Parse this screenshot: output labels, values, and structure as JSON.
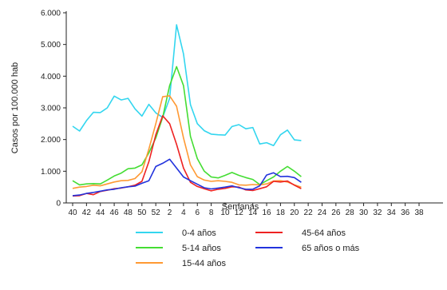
{
  "chart_data": {
    "type": "line",
    "xlabel": "Semanas",
    "ylabel": "Casos por 100.000 hab",
    "ylim": [
      0,
      6000
    ],
    "y_ticks": [
      "0",
      "1.000",
      "2.000",
      "3.000",
      "4.000",
      "5.000",
      "6.000"
    ],
    "y_tick_values": [
      0,
      1000,
      2000,
      3000,
      4000,
      5000,
      6000
    ],
    "x_ticks": [
      "40",
      "42",
      "44",
      "46",
      "48",
      "50",
      "52",
      "2",
      "4",
      "6",
      "8",
      "10",
      "12",
      "14",
      "16",
      "18",
      "20",
      "22",
      "24",
      "26",
      "28",
      "30",
      "32",
      "34",
      "36",
      "38"
    ],
    "legend_position": "bottom",
    "grid": false,
    "x": [
      "40",
      "41",
      "42",
      "43",
      "44",
      "45",
      "46",
      "47",
      "48",
      "49",
      "50",
      "51",
      "52",
      "1",
      "2",
      "3",
      "4",
      "5",
      "6",
      "7",
      "8",
      "9",
      "10",
      "11",
      "12",
      "13",
      "14",
      "15",
      "16",
      "17",
      "18",
      "19",
      "20",
      "21"
    ],
    "series": [
      {
        "name": "0-4 años",
        "color": "#33d6ef",
        "values": [
          2420,
          2270,
          2600,
          2860,
          2850,
          3000,
          3370,
          3250,
          3300,
          2970,
          2740,
          3110,
          2840,
          2700,
          3300,
          5620,
          4700,
          3100,
          2500,
          2280,
          2170,
          2150,
          2140,
          2410,
          2470,
          2340,
          2380,
          1860,
          1900,
          1810,
          2150,
          2300,
          1990,
          1970
        ]
      },
      {
        "name": "5-14 años",
        "color": "#44dd33",
        "values": [
          700,
          570,
          600,
          610,
          600,
          720,
          850,
          940,
          1080,
          1100,
          1200,
          1580,
          2050,
          2700,
          3700,
          4300,
          3700,
          2100,
          1400,
          1000,
          820,
          790,
          870,
          960,
          870,
          800,
          740,
          580,
          700,
          820,
          1000,
          1150,
          1000,
          830
        ]
      },
      {
        "name": "15-44 años",
        "color": "#ff9933",
        "values": [
          460,
          500,
          520,
          560,
          540,
          600,
          660,
          700,
          710,
          770,
          980,
          1700,
          2500,
          3350,
          3380,
          3050,
          2050,
          1200,
          830,
          720,
          680,
          700,
          680,
          650,
          570,
          560,
          580,
          570,
          600,
          690,
          700,
          660,
          570,
          500
        ]
      },
      {
        "name": "45-64 años",
        "color": "#ee2222",
        "values": [
          220,
          230,
          300,
          260,
          360,
          400,
          450,
          470,
          510,
          560,
          680,
          1300,
          2150,
          2750,
          2500,
          1850,
          1100,
          650,
          520,
          450,
          380,
          430,
          460,
          510,
          500,
          410,
          390,
          450,
          510,
          680,
          660,
          690,
          560,
          450
        ]
      },
      {
        "name": "65 años o más",
        "color": "#2233dd",
        "values": [
          230,
          250,
          300,
          330,
          370,
          410,
          430,
          480,
          510,
          530,
          620,
          700,
          1150,
          1250,
          1380,
          1100,
          820,
          700,
          590,
          480,
          440,
          470,
          500,
          540,
          480,
          430,
          430,
          540,
          880,
          950,
          830,
          840,
          800,
          650
        ]
      }
    ]
  }
}
